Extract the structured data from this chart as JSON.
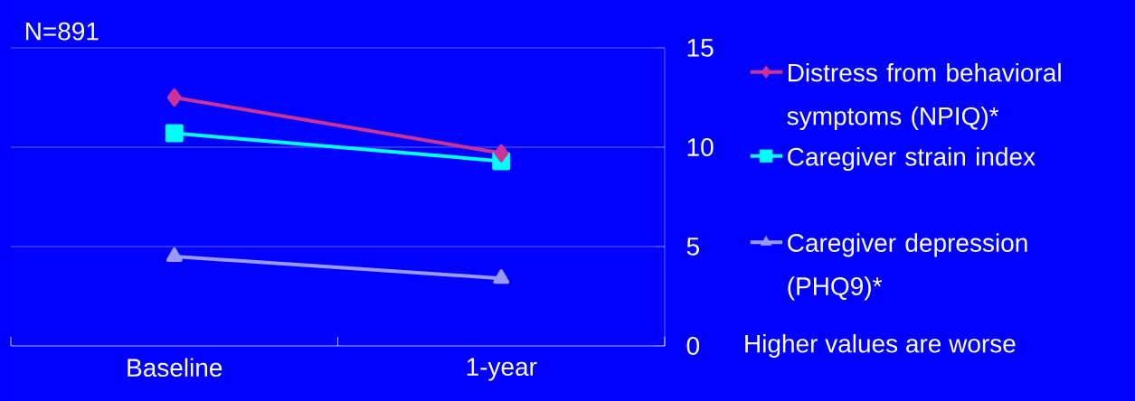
{
  "chart_data": {
    "type": "line",
    "categories": [
      "Baseline",
      "1-year"
    ],
    "series": [
      {
        "name": "Distress from behavioral symptoms (NPIQ)*",
        "color": "#cc3399",
        "values": [
          12.5,
          9.7
        ],
        "marker": "diamond"
      },
      {
        "name": "Caregiver strain index",
        "color": "#00ffff",
        "values": [
          10.7,
          9.3
        ],
        "marker": "square"
      },
      {
        "name": "Caregiver depression (PHQ9)*",
        "color": "#9999ff",
        "values": [
          4.5,
          3.4
        ],
        "marker": "triangle"
      }
    ],
    "ylim": [
      0,
      15
    ],
    "yticks": [
      0,
      5,
      10,
      15
    ],
    "grid": "y",
    "legend": "right",
    "line_style": "solid",
    "annotations": [
      "N=891",
      "Higher values are worse"
    ]
  }
}
